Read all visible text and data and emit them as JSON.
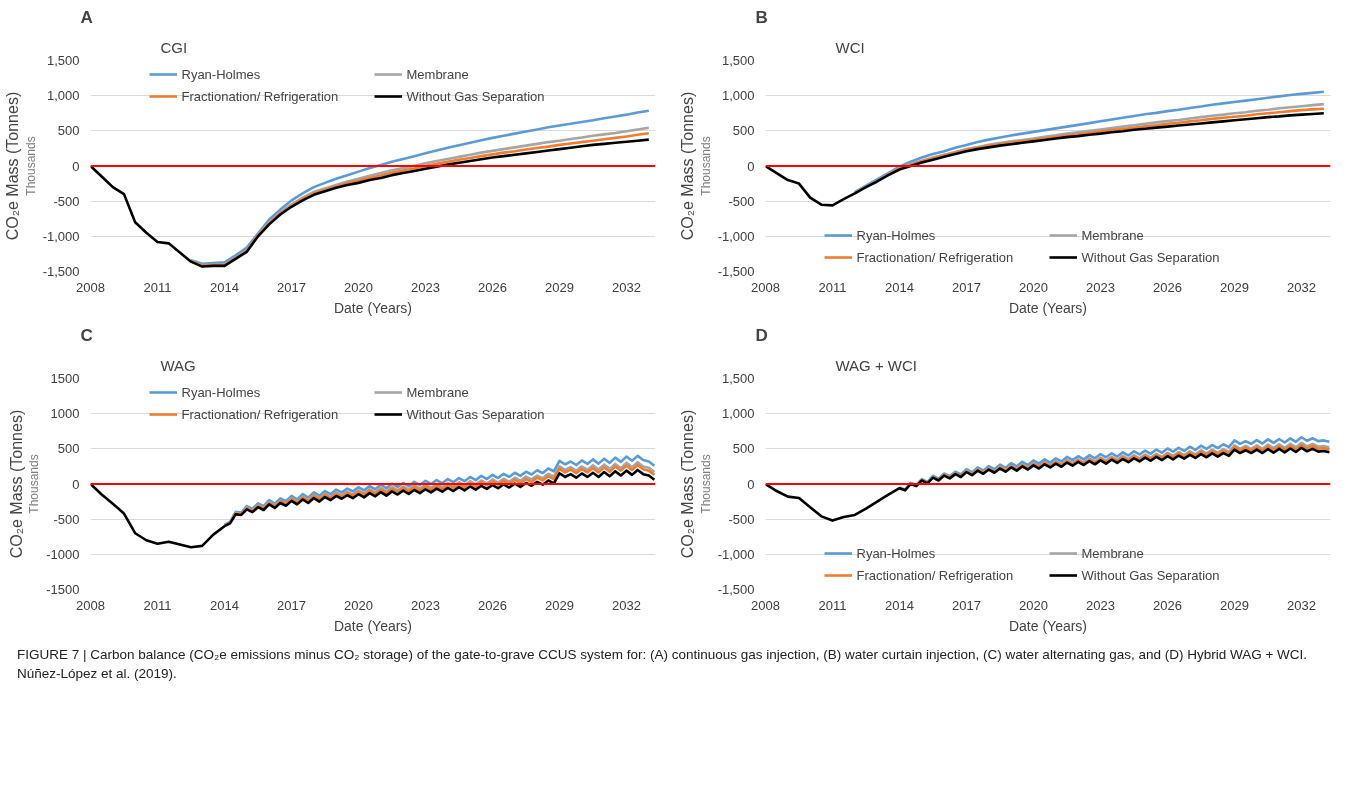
{
  "chart_data": [
    {
      "type": "line",
      "title": "A",
      "subtitle": "CGI",
      "xlabel": "Date (Years)",
      "ylabel": "CO₂e Mass (Tonnes)",
      "annotations": [
        "Thousands"
      ],
      "x": [
        2008,
        2008.5,
        2009,
        2009.5,
        2010,
        2010.5,
        2011,
        2011.5,
        2012,
        2012.5,
        2013,
        2013.5,
        2014,
        2014.5,
        2015,
        2015.5,
        2016,
        2016.5,
        2017,
        2017.5,
        2018,
        2018.5,
        2019,
        2019.5,
        2020,
        2020.5,
        2021,
        2021.5,
        2022,
        2022.5,
        2023,
        2023.5,
        2024,
        2024.5,
        2025,
        2025.5,
        2026,
        2026.5,
        2027,
        2027.5,
        2028,
        2028.5,
        2029,
        2029.5,
        2030,
        2030.5,
        2031,
        2031.5,
        2032,
        2032.5,
        2033
      ],
      "series": [
        {
          "name": "Ryan-Holmes",
          "color": "#5b9bd5",
          "values": [
            null,
            null,
            null,
            null,
            null,
            null,
            null,
            null,
            null,
            -1340,
            -1390,
            -1380,
            -1370,
            -1270,
            -1160,
            -960,
            -760,
            -620,
            -490,
            -390,
            -300,
            -240,
            -180,
            -130,
            -80,
            -30,
            15,
            60,
            100,
            140,
            180,
            220,
            260,
            295,
            330,
            365,
            400,
            430,
            460,
            490,
            520,
            550,
            575,
            600,
            625,
            650,
            680,
            705,
            730,
            760,
            785
          ]
        },
        {
          "name": "Membrane",
          "color": "#a5a5a5",
          "values": [
            null,
            null,
            null,
            null,
            null,
            null,
            null,
            null,
            null,
            -1350,
            -1410,
            -1400,
            -1400,
            -1300,
            -1200,
            -980,
            -800,
            -660,
            -550,
            -450,
            -370,
            -320,
            -270,
            -220,
            -180,
            -140,
            -100,
            -60,
            -30,
            5,
            40,
            70,
            100,
            130,
            160,
            190,
            215,
            240,
            265,
            290,
            315,
            340,
            360,
            385,
            405,
            430,
            450,
            470,
            495,
            520,
            545
          ]
        },
        {
          "name": "Fractionation/ Refrigeration",
          "color": "#ed7d31",
          "values": [
            null,
            null,
            null,
            null,
            null,
            null,
            null,
            null,
            null,
            -1355,
            -1420,
            -1410,
            -1410,
            -1310,
            -1210,
            -990,
            -815,
            -675,
            -565,
            -470,
            -390,
            -340,
            -290,
            -245,
            -210,
            -170,
            -135,
            -95,
            -65,
            -35,
            0,
            30,
            60,
            90,
            115,
            140,
            165,
            190,
            210,
            235,
            255,
            275,
            300,
            320,
            340,
            360,
            380,
            400,
            420,
            445,
            465
          ]
        },
        {
          "name": "Without Gas Separation",
          "color": "#000000",
          "values": [
            0,
            -150,
            -300,
            -400,
            -800,
            -950,
            -1080,
            -1100,
            -1230,
            -1360,
            -1430,
            -1420,
            -1420,
            -1320,
            -1220,
            -1000,
            -830,
            -690,
            -580,
            -490,
            -410,
            -360,
            -310,
            -270,
            -240,
            -200,
            -170,
            -130,
            -100,
            -70,
            -40,
            -10,
            20,
            45,
            70,
            95,
            120,
            140,
            160,
            180,
            200,
            220,
            240,
            260,
            280,
            300,
            315,
            330,
            345,
            360,
            375
          ]
        }
      ],
      "xlim": [
        2008,
        2033.3
      ],
      "xticks": [
        2008,
        2011,
        2014,
        2017,
        2020,
        2023,
        2026,
        2029,
        2032
      ],
      "ylim": [
        -1500,
        1500
      ],
      "yticks": [
        {
          "value": -1500,
          "label": "-1,500"
        },
        {
          "value": -1000,
          "label": "-1,000"
        },
        -500,
        0,
        500,
        {
          "value": 1000,
          "label": "1,000"
        },
        {
          "value": 1500,
          "label": "1,500"
        }
      ],
      "ref_lines": [
        {
          "axis": "y",
          "value": 0,
          "color": "#ff0000"
        }
      ],
      "grid": "y",
      "legend": "top",
      "line_style": "solid"
    },
    {
      "type": "line",
      "title": "B",
      "subtitle": "WCI",
      "xlabel": "Date (Years)",
      "ylabel": "CO₂e Mass (Tonnes)",
      "annotations": [
        "Thousands"
      ],
      "x": [
        2008,
        2008.5,
        2009,
        2009.5,
        2010,
        2010.5,
        2011,
        2011.5,
        2012,
        2012.5,
        2013,
        2013.5,
        2014,
        2014.5,
        2015,
        2015.5,
        2016,
        2016.5,
        2017,
        2017.5,
        2018,
        2018.5,
        2019,
        2019.5,
        2020,
        2020.5,
        2021,
        2021.5,
        2022,
        2022.5,
        2023,
        2023.5,
        2024,
        2024.5,
        2025,
        2025.5,
        2026,
        2026.5,
        2027,
        2027.5,
        2028,
        2028.5,
        2029,
        2029.5,
        2030,
        2030.5,
        2031,
        2031.5,
        2032,
        2032.5,
        2033
      ],
      "series": [
        {
          "name": "Ryan-Holmes",
          "color": "#5b9bd5",
          "values": [
            null,
            null,
            null,
            null,
            null,
            null,
            null,
            null,
            -370,
            -280,
            -190,
            -100,
            -10,
            60,
            120,
            170,
            210,
            260,
            300,
            340,
            375,
            405,
            435,
            460,
            485,
            510,
            535,
            560,
            585,
            610,
            635,
            660,
            685,
            710,
            735,
            755,
            780,
            800,
            825,
            845,
            870,
            890,
            910,
            930,
            950,
            970,
            990,
            1010,
            1025,
            1040,
            1055
          ]
        },
        {
          "name": "Membrane",
          "color": "#a5a5a5",
          "values": [
            null,
            null,
            null,
            null,
            null,
            null,
            null,
            null,
            -380,
            -290,
            -205,
            -115,
            -30,
            25,
            75,
            120,
            160,
            200,
            240,
            270,
            300,
            325,
            350,
            370,
            390,
            415,
            435,
            460,
            480,
            500,
            520,
            540,
            560,
            580,
            600,
            620,
            640,
            655,
            675,
            695,
            715,
            730,
            750,
            765,
            785,
            800,
            820,
            835,
            850,
            865,
            880
          ]
        },
        {
          "name": "Fractionation/ Refrigeration",
          "color": "#ed7d31",
          "values": [
            null,
            null,
            null,
            null,
            null,
            null,
            null,
            null,
            null,
            null,
            null,
            -120,
            -40,
            15,
            65,
            105,
            145,
            185,
            225,
            255,
            285,
            310,
            330,
            350,
            370,
            390,
            410,
            430,
            450,
            470,
            490,
            510,
            525,
            545,
            565,
            580,
            600,
            615,
            635,
            650,
            670,
            685,
            700,
            715,
            735,
            750,
            765,
            780,
            795,
            805,
            815
          ]
        },
        {
          "name": "Without Gas Separation",
          "color": "#000000",
          "values": [
            0,
            -100,
            -200,
            -250,
            -450,
            -550,
            -560,
            -470,
            -390,
            -300,
            -220,
            -130,
            -50,
            0,
            50,
            90,
            130,
            170,
            210,
            240,
            265,
            290,
            310,
            330,
            350,
            370,
            390,
            410,
            425,
            445,
            460,
            480,
            495,
            515,
            530,
            545,
            560,
            575,
            590,
            605,
            620,
            635,
            650,
            665,
            680,
            695,
            705,
            720,
            730,
            740,
            750
          ]
        }
      ],
      "xlim": [
        2008,
        2033.3
      ],
      "xticks": [
        2008,
        2011,
        2014,
        2017,
        2020,
        2023,
        2026,
        2029,
        2032
      ],
      "ylim": [
        -1500,
        1500
      ],
      "yticks": [
        {
          "value": -1500,
          "label": "-1,500"
        },
        {
          "value": -1000,
          "label": "-1,000"
        },
        -500,
        0,
        500,
        {
          "value": 1000,
          "label": "1,000"
        },
        {
          "value": 1500,
          "label": "1,500"
        }
      ],
      "ref_lines": [
        {
          "axis": "y",
          "value": 0,
          "color": "#ff0000"
        }
      ],
      "grid": "y",
      "legend": "bottom",
      "line_style": "solid"
    },
    {
      "type": "line",
      "title": "C",
      "subtitle": "WAG",
      "xlabel": "Date (Years)",
      "ylabel": "CO₂e Mass (Tonnes)",
      "annotations": [
        "Thousands"
      ],
      "x": [
        2008,
        2008.5,
        2009,
        2009.5,
        2010,
        2010.5,
        2011,
        2011.5,
        2012,
        2012.5,
        2013,
        2013.5,
        2014,
        2014.25,
        2014.5,
        2014.75,
        2015,
        2015.25,
        2015.5,
        2015.75,
        2016,
        2016.25,
        2016.5,
        2016.75,
        2017,
        2017.25,
        2017.5,
        2017.75,
        2018,
        2018.25,
        2018.5,
        2018.75,
        2019,
        2019.25,
        2019.5,
        2019.75,
        2020,
        2020.25,
        2020.5,
        2020.75,
        2021,
        2021.25,
        2021.5,
        2021.75,
        2022,
        2022.25,
        2022.5,
        2022.75,
        2023,
        2023.25,
        2023.5,
        2023.75,
        2024,
        2024.25,
        2024.5,
        2024.75,
        2025,
        2025.25,
        2025.5,
        2025.75,
        2026,
        2026.25,
        2026.5,
        2026.75,
        2027,
        2027.25,
        2027.5,
        2027.75,
        2028,
        2028.25,
        2028.5,
        2028.75,
        2029,
        2029.25,
        2029.5,
        2029.75,
        2030,
        2030.25,
        2030.5,
        2030.75,
        2031,
        2031.25,
        2031.5,
        2031.75,
        2032,
        2032.25,
        2032.5,
        2032.75,
        2033,
        2033.25
      ],
      "series": [
        {
          "name": "Ryan-Holmes",
          "color": "#5b9bd5",
          "values": [
            null,
            null,
            null,
            null,
            null,
            null,
            null,
            null,
            null,
            null,
            null,
            null,
            -580,
            -540,
            -395,
            -405,
            -315,
            -355,
            -275,
            -315,
            -230,
            -280,
            -205,
            -245,
            -170,
            -220,
            -145,
            -195,
            -120,
            -170,
            -100,
            -145,
            -80,
            -120,
            -65,
            -105,
            -45,
            -90,
            -30,
            -75,
            -10,
            -60,
            5,
            -40,
            15,
            -30,
            30,
            -15,
            45,
            0,
            55,
            10,
            70,
            25,
            85,
            40,
            100,
            55,
            115,
            70,
            130,
            85,
            145,
            100,
            160,
            115,
            175,
            135,
            195,
            155,
            220,
            180,
            330,
            280,
            320,
            270,
            335,
            285,
            350,
            290,
            360,
            300,
            375,
            315,
            390,
            330,
            400,
            340,
            320,
            260
          ]
        },
        {
          "name": "Membrane",
          "color": "#a5a5a5",
          "values": [
            null,
            null,
            null,
            null,
            null,
            null,
            null,
            null,
            null,
            null,
            null,
            null,
            -590,
            -550,
            -410,
            -420,
            -335,
            -375,
            -300,
            -340,
            -255,
            -305,
            -235,
            -275,
            -200,
            -250,
            -180,
            -230,
            -155,
            -205,
            -140,
            -185,
            -120,
            -160,
            -110,
            -150,
            -90,
            -135,
            -75,
            -120,
            -55,
            -105,
            -45,
            -90,
            -35,
            -80,
            -20,
            -65,
            -10,
            -55,
            0,
            -45,
            15,
            -30,
            25,
            -20,
            40,
            -5,
            50,
            5,
            65,
            20,
            75,
            30,
            90,
            45,
            105,
            65,
            120,
            80,
            145,
            105,
            250,
            200,
            240,
            190,
            250,
            200,
            265,
            205,
            275,
            215,
            285,
            225,
            300,
            240,
            310,
            250,
            230,
            170
          ]
        },
        {
          "name": "Fractionation/ Refrigeration",
          "color": "#ed7d31",
          "values": [
            null,
            null,
            null,
            null,
            null,
            null,
            null,
            null,
            null,
            null,
            null,
            null,
            -595,
            -555,
            -420,
            -430,
            -345,
            -385,
            -310,
            -350,
            -270,
            -320,
            -245,
            -285,
            -215,
            -265,
            -195,
            -245,
            -170,
            -220,
            -155,
            -200,
            -140,
            -180,
            -125,
            -165,
            -110,
            -155,
            -95,
            -140,
            -80,
            -130,
            -65,
            -110,
            -55,
            -100,
            -45,
            -90,
            -35,
            -80,
            -25,
            -70,
            -10,
            -55,
            0,
            -45,
            10,
            -35,
            25,
            -20,
            35,
            -10,
            45,
            0,
            60,
            15,
            70,
            30,
            90,
            50,
            110,
            70,
            215,
            165,
            205,
            155,
            215,
            165,
            225,
            165,
            235,
            175,
            250,
            190,
            260,
            200,
            270,
            210,
            190,
            130
          ]
        },
        {
          "name": "Without Gas Separation",
          "color": "#000000",
          "values": [
            0,
            -150,
            -280,
            -420,
            -700,
            -800,
            -850,
            -820,
            -860,
            -900,
            -880,
            -720,
            -600,
            -560,
            -430,
            -440,
            -360,
            -400,
            -330,
            -370,
            -290,
            -340,
            -270,
            -310,
            -240,
            -290,
            -220,
            -270,
            -200,
            -250,
            -185,
            -230,
            -170,
            -210,
            -160,
            -200,
            -145,
            -190,
            -130,
            -175,
            -115,
            -165,
            -105,
            -150,
            -95,
            -140,
            -85,
            -130,
            -75,
            -120,
            -65,
            -110,
            -55,
            -100,
            -45,
            -90,
            -35,
            -80,
            -25,
            -70,
            -15,
            -60,
            -5,
            -50,
            5,
            -40,
            15,
            -25,
            30,
            -10,
            50,
            10,
            150,
            100,
            140,
            90,
            150,
            100,
            160,
            100,
            170,
            110,
            180,
            120,
            190,
            130,
            200,
            140,
            120,
            60
          ]
        }
      ],
      "xlim": [
        2008,
        2033.3
      ],
      "xticks": [
        2008,
        2011,
        2014,
        2017,
        2020,
        2023,
        2026,
        2029,
        2032
      ],
      "ylim": [
        -1500,
        1500
      ],
      "yticks": [
        -1500,
        -1000,
        -500,
        0,
        500,
        1000,
        1500
      ],
      "ref_lines": [
        {
          "axis": "y",
          "value": 0,
          "color": "#ff0000"
        }
      ],
      "grid": "y",
      "legend": "top",
      "line_style": "solid"
    },
    {
      "type": "line",
      "title": "D",
      "subtitle": "WAG + WCI",
      "xlabel": "Date (Years)",
      "ylabel": "CO₂e Mass (Tonnes)",
      "annotations": [
        "Thousands",
        "FIGURE 7 | Carbon balance (CO₂e emissions minus CO₂ storage) of the gate-to-grave CCUS system for: (A) continuous gas injection, (B) water curtain injection, (C) water alternating gas, and (D) Hybrid WAG + WCI. Núñez-López et al. (2019)."
      ],
      "x": [
        2008,
        2008.5,
        2009,
        2009.5,
        2010,
        2010.5,
        2011,
        2011.5,
        2012,
        2012.5,
        2013,
        2013.5,
        2014,
        2014.25,
        2014.5,
        2014.75,
        2015,
        2015.25,
        2015.5,
        2015.75,
        2016,
        2016.25,
        2016.5,
        2016.75,
        2017,
        2017.25,
        2017.5,
        2017.75,
        2018,
        2018.25,
        2018.5,
        2018.75,
        2019,
        2019.25,
        2019.5,
        2019.75,
        2020,
        2020.25,
        2020.5,
        2020.75,
        2021,
        2021.25,
        2021.5,
        2021.75,
        2022,
        2022.25,
        2022.5,
        2022.75,
        2023,
        2023.25,
        2023.5,
        2023.75,
        2024,
        2024.25,
        2024.5,
        2024.75,
        2025,
        2025.25,
        2025.5,
        2025.75,
        2026,
        2026.25,
        2026.5,
        2026.75,
        2027,
        2027.25,
        2027.5,
        2027.75,
        2028,
        2028.25,
        2028.5,
        2028.75,
        2029,
        2029.25,
        2029.5,
        2029.75,
        2030,
        2030.25,
        2030.5,
        2030.75,
        2031,
        2031.25,
        2031.5,
        2031.75,
        2032,
        2032.25,
        2032.5,
        2032.75,
        2033,
        2033.25
      ],
      "series": [
        {
          "name": "Ryan-Holmes",
          "color": "#5b9bd5",
          "values": [
            null,
            null,
            null,
            null,
            null,
            null,
            null,
            null,
            null,
            null,
            null,
            null,
            -50,
            -80,
            15,
            -15,
            70,
            30,
            115,
            75,
            150,
            110,
            175,
            135,
            210,
            165,
            235,
            190,
            255,
            210,
            275,
            230,
            295,
            250,
            315,
            270,
            335,
            290,
            350,
            305,
            365,
            320,
            385,
            340,
            395,
            350,
            410,
            365,
            425,
            380,
            435,
            390,
            450,
            405,
            465,
            420,
            475,
            430,
            490,
            445,
            505,
            460,
            515,
            470,
            530,
            485,
            545,
            500,
            555,
            510,
            565,
            525,
            620,
            570,
            610,
            570,
            625,
            575,
            635,
            585,
            640,
            590,
            650,
            600,
            665,
            615,
            650,
            610,
            620,
            600
          ]
        },
        {
          "name": "Membrane",
          "color": "#a5a5a5",
          "values": [
            null,
            null,
            null,
            null,
            null,
            null,
            null,
            null,
            null,
            null,
            null,
            null,
            -55,
            -85,
            5,
            -25,
            60,
            20,
            100,
            60,
            135,
            95,
            155,
            115,
            190,
            145,
            210,
            165,
            225,
            180,
            245,
            200,
            260,
            215,
            280,
            235,
            295,
            250,
            310,
            265,
            325,
            280,
            340,
            295,
            350,
            305,
            365,
            320,
            375,
            330,
            385,
            340,
            400,
            355,
            410,
            365,
            420,
            375,
            430,
            385,
            445,
            400,
            455,
            410,
            465,
            420,
            480,
            435,
            490,
            445,
            495,
            455,
            550,
            500,
            540,
            500,
            550,
            500,
            560,
            510,
            565,
            515,
            570,
            520,
            585,
            535,
            570,
            530,
            540,
            520
          ]
        },
        {
          "name": "Fractionation/ Refrigeration",
          "color": "#ed7d31",
          "values": [
            null,
            null,
            null,
            null,
            null,
            null,
            null,
            null,
            null,
            null,
            null,
            null,
            null,
            null,
            null,
            null,
            null,
            null,
            null,
            55,
            130,
            90,
            150,
            110,
            180,
            135,
            200,
            155,
            215,
            170,
            235,
            190,
            250,
            205,
            265,
            220,
            285,
            240,
            300,
            255,
            310,
            265,
            325,
            280,
            335,
            290,
            345,
            300,
            360,
            315,
            370,
            325,
            380,
            335,
            390,
            345,
            400,
            355,
            410,
            365,
            425,
            380,
            435,
            390,
            445,
            400,
            455,
            410,
            465,
            420,
            470,
            430,
            525,
            475,
            515,
            475,
            525,
            475,
            530,
            480,
            535,
            485,
            540,
            490,
            555,
            505,
            540,
            500,
            510,
            490
          ]
        },
        {
          "name": "Without Gas Separation",
          "color": "#000000",
          "values": [
            0,
            -100,
            -180,
            -200,
            -330,
            -460,
            -520,
            -470,
            -440,
            -350,
            -250,
            -150,
            -60,
            -90,
            0,
            -30,
            50,
            10,
            90,
            50,
            120,
            80,
            140,
            100,
            170,
            125,
            190,
            145,
            205,
            160,
            220,
            175,
            235,
            190,
            250,
            205,
            265,
            220,
            280,
            235,
            290,
            245,
            305,
            260,
            315,
            270,
            325,
            280,
            335,
            290,
            345,
            300,
            355,
            310,
            365,
            320,
            375,
            330,
            385,
            340,
            395,
            350,
            405,
            360,
            415,
            370,
            425,
            380,
            435,
            390,
            440,
            400,
            490,
            440,
            480,
            440,
            490,
            440,
            495,
            445,
            500,
            450,
            505,
            455,
            515,
            465,
            500,
            460,
            470,
            450
          ]
        }
      ],
      "xlim": [
        2008,
        2033.3
      ],
      "xticks": [
        2008,
        2011,
        2014,
        2017,
        2020,
        2023,
        2026,
        2029,
        2032
      ],
      "ylim": [
        -1500,
        1500
      ],
      "yticks": [
        {
          "value": -1500,
          "label": "-1,500"
        },
        {
          "value": -1000,
          "label": "-1,000"
        },
        -500,
        0,
        500,
        {
          "value": 1000,
          "label": "1,000"
        },
        {
          "value": 1500,
          "label": "1,500"
        }
      ],
      "ref_lines": [
        {
          "axis": "y",
          "value": 0,
          "color": "#ff0000"
        }
      ],
      "grid": "y",
      "legend": "bottom",
      "line_style": "solid"
    }
  ]
}
